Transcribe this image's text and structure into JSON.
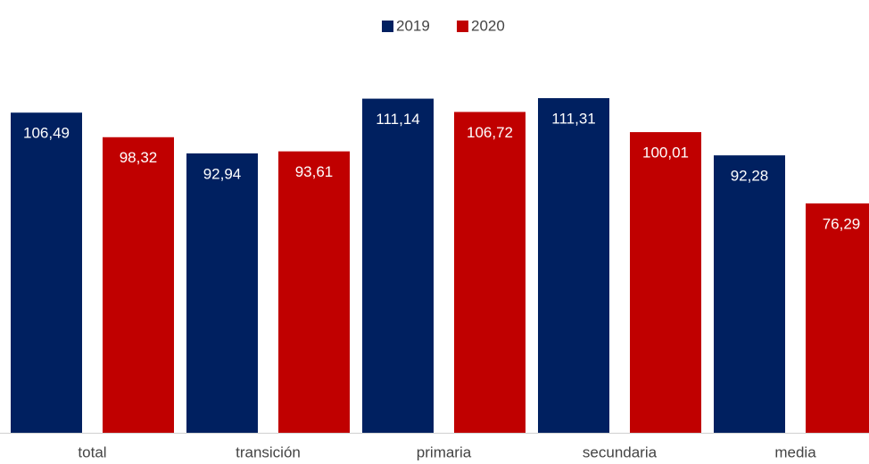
{
  "chart_data": {
    "type": "bar",
    "categories": [
      "total",
      "transición",
      "primaria",
      "secundaria",
      "media"
    ],
    "series": [
      {
        "name": "2019",
        "color": "#002060",
        "values": [
          106.49,
          92.94,
          111.14,
          111.31,
          92.28
        ],
        "value_labels": [
          "106,49",
          "92,94",
          "111,14",
          "111,31",
          "92,28"
        ]
      },
      {
        "name": "2020",
        "color": "#c00000",
        "values": [
          98.32,
          93.61,
          106.72,
          100.01,
          76.29
        ],
        "value_labels": [
          "98,32",
          "93,61",
          "106,72",
          "100,01",
          "76,29"
        ]
      }
    ],
    "legend": "top"
  }
}
